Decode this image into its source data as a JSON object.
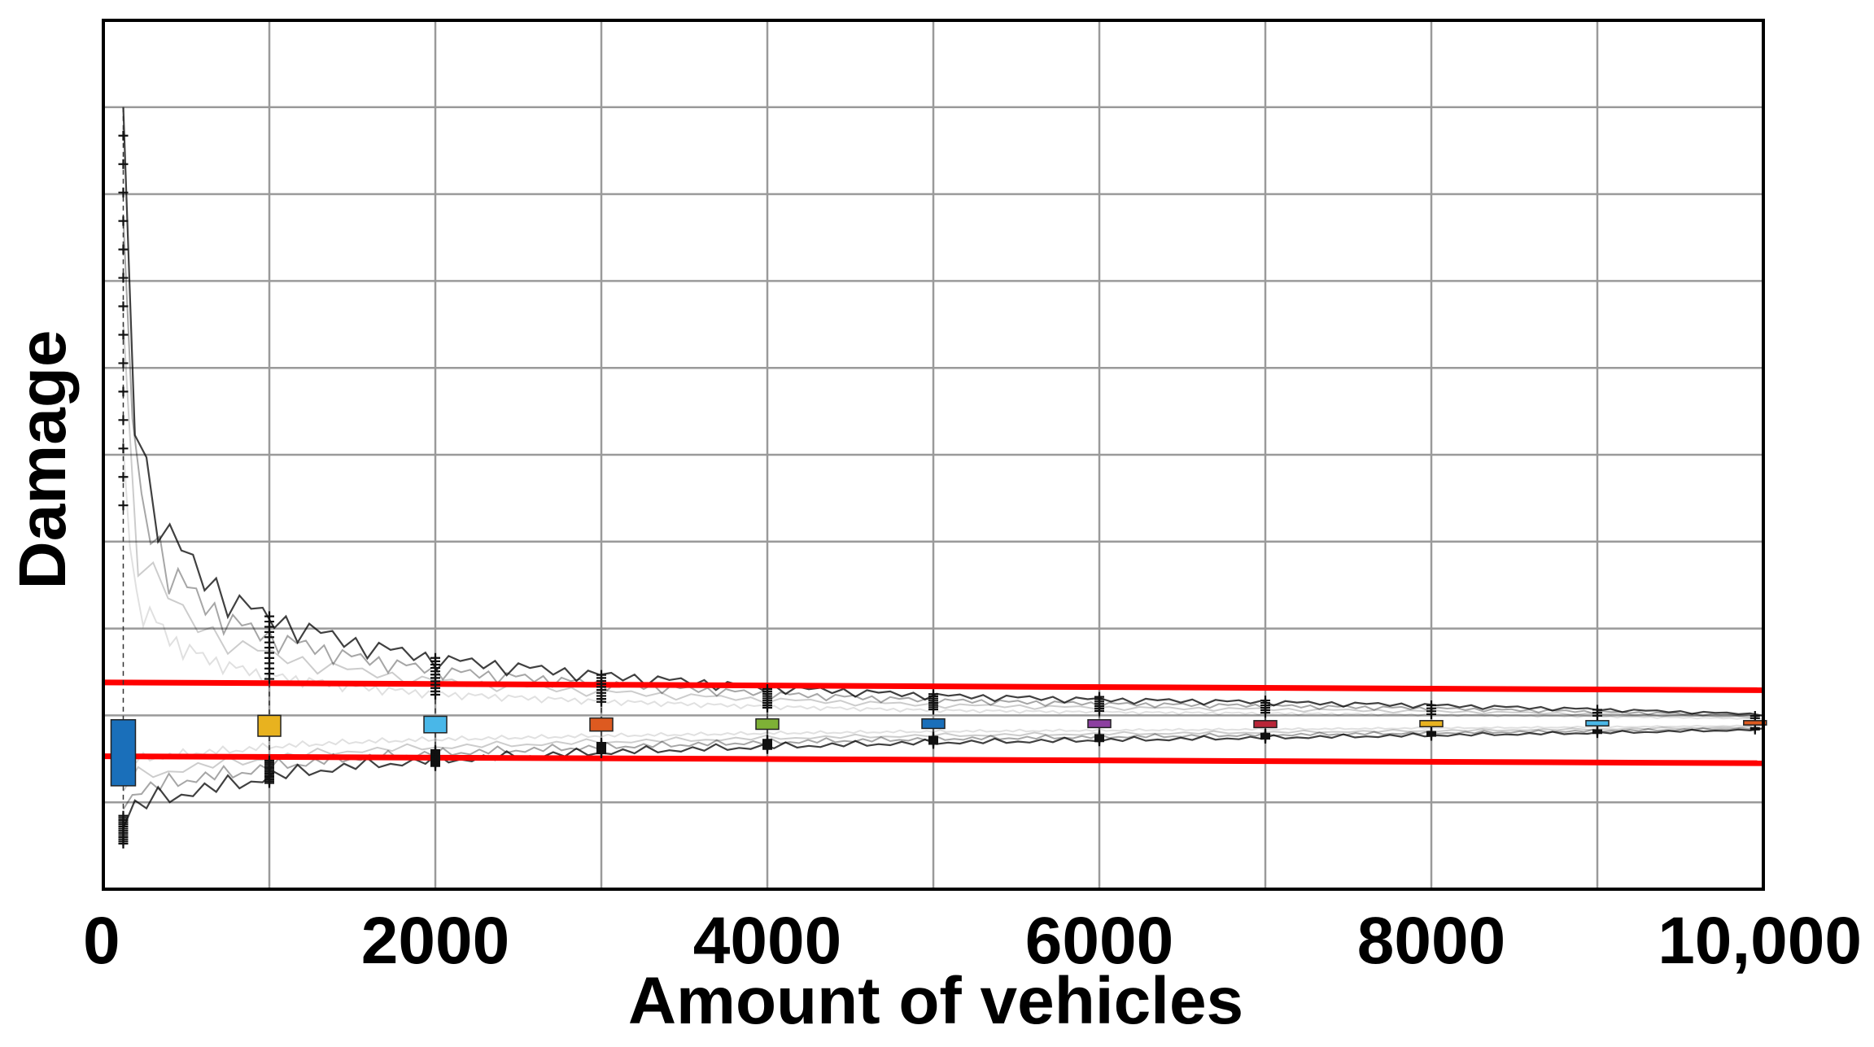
{
  "chart_data": {
    "type": "box",
    "title": "",
    "xlabel": "Amount of vehicles",
    "ylabel": "Damage",
    "x_ticks": [
      {
        "value": 0,
        "label": "0"
      },
      {
        "value": 2000,
        "label": "2000"
      },
      {
        "value": 4000,
        "label": "4000"
      },
      {
        "value": 6000,
        "label": "6000"
      },
      {
        "value": 8000,
        "label": "8000"
      },
      {
        "value": 10000,
        "label": "10,000"
      }
    ],
    "xlim": [
      0,
      10000
    ],
    "ylim": [
      0,
      10
    ],
    "grid": true,
    "x_grid_step": 1000,
    "y_grid_step": 1,
    "legend": "none",
    "reference_lines": [
      {
        "color": "#ff0000",
        "points": [
          [
            0,
            2.38
          ],
          [
            10000,
            2.29
          ]
        ]
      },
      {
        "color": "#ff0000",
        "points": [
          [
            0,
            1.53
          ],
          [
            10000,
            1.45
          ]
        ]
      }
    ],
    "boxes": [
      {
        "x": 120,
        "q1": 1.19,
        "q3": 1.95,
        "whisker_low": 0.5,
        "whisker_high": 9.0,
        "color": "#1a6fba"
      },
      {
        "x": 1000,
        "q1": 1.76,
        "q3": 2.0,
        "whisker_low": 1.2,
        "whisker_high": 3.2,
        "color": "#e8b21f"
      },
      {
        "x": 2000,
        "q1": 1.8,
        "q3": 1.99,
        "whisker_low": 1.4,
        "whisker_high": 2.7,
        "color": "#49b7e8"
      },
      {
        "x": 3000,
        "q1": 1.82,
        "q3": 1.97,
        "whisker_low": 1.55,
        "whisker_high": 2.5,
        "color": "#dd5a20"
      },
      {
        "x": 4000,
        "q1": 1.84,
        "q3": 1.96,
        "whisker_low": 1.6,
        "whisker_high": 2.33,
        "color": "#7eb136"
      },
      {
        "x": 5000,
        "q1": 1.85,
        "q3": 1.96,
        "whisker_low": 1.66,
        "whisker_high": 2.27,
        "color": "#1a6fba"
      },
      {
        "x": 6000,
        "q1": 1.86,
        "q3": 1.95,
        "whisker_low": 1.69,
        "whisker_high": 2.24,
        "color": "#8c3fa0"
      },
      {
        "x": 7000,
        "q1": 1.86,
        "q3": 1.94,
        "whisker_low": 1.72,
        "whisker_high": 2.2,
        "color": "#b92537"
      },
      {
        "x": 8000,
        "q1": 1.87,
        "q3": 1.94,
        "whisker_low": 1.75,
        "whisker_high": 2.15,
        "color": "#e8b21f"
      },
      {
        "x": 9000,
        "q1": 1.88,
        "q3": 1.94,
        "whisker_low": 1.78,
        "whisker_high": 2.1,
        "color": "#49b7e8"
      },
      {
        "x": 9950,
        "q1": 1.89,
        "q3": 1.94,
        "whisker_low": 1.82,
        "whisker_high": 2.02,
        "color": "#dd5a20"
      }
    ],
    "center_value": 1.92,
    "envelope": {
      "color": "#000000",
      "x": [
        120,
        200,
        400,
        600,
        800,
        1000,
        1500,
        2000,
        2500,
        3000,
        4000,
        5000,
        6000,
        7000,
        8000,
        9000,
        10000
      ],
      "upper": [
        9.0,
        5.3,
        4.2,
        3.7,
        3.4,
        3.2,
        2.9,
        2.7,
        2.6,
        2.5,
        2.35,
        2.25,
        2.2,
        2.17,
        2.13,
        2.08,
        2.02
      ],
      "lower": [
        0.7,
        0.9,
        1.0,
        1.1,
        1.15,
        1.25,
        1.38,
        1.45,
        1.5,
        1.55,
        1.62,
        1.67,
        1.7,
        1.73,
        1.76,
        1.79,
        1.83
      ]
    }
  }
}
